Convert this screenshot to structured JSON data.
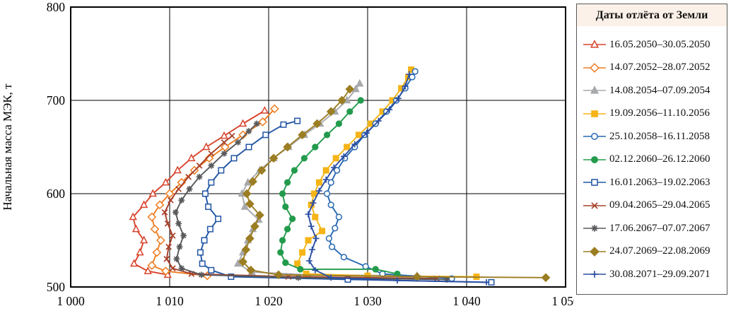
{
  "chart_data": {
    "type": "line",
    "title": "",
    "legend_title": "Даты отлёта от Земли",
    "xlabel": "",
    "ylabel": "Начальная масса МЭК, т",
    "xlim": [
      1000,
      1050
    ],
    "ylim": [
      500,
      800
    ],
    "x_ticks": [
      1000,
      1010,
      1020,
      1030,
      1040,
      1050
    ],
    "x_tick_labels": [
      "1 000",
      "1 010",
      "1 020",
      "1 030",
      "1 040",
      "1 050"
    ],
    "y_ticks": [
      500,
      600,
      700,
      800
    ],
    "grid": true,
    "legend_position": "right",
    "series": [
      {
        "name": "16.05.2050–30.05.2050",
        "marker": "triangle-open",
        "color": "#d8432c",
        "points": [
          [
            1009.8,
            513
          ],
          [
            1007.8,
            517
          ],
          [
            1006.4,
            525
          ],
          [
            1007.0,
            537
          ],
          [
            1007.4,
            550
          ],
          [
            1006.6,
            562
          ],
          [
            1006.3,
            575
          ],
          [
            1007.4,
            588
          ],
          [
            1008.3,
            600
          ],
          [
            1009.6,
            612
          ],
          [
            1010.8,
            625
          ],
          [
            1012.2,
            638
          ],
          [
            1013.7,
            650
          ],
          [
            1015.5,
            662
          ],
          [
            1017.4,
            675
          ],
          [
            1019.6,
            689
          ]
        ]
      },
      {
        "name": "14.07.2052–28.07.2052",
        "marker": "diamond-open",
        "color": "#ee7d20",
        "points": [
          [
            1013.8,
            512
          ],
          [
            1009.6,
            517
          ],
          [
            1008.2,
            523
          ],
          [
            1008.7,
            537
          ],
          [
            1009.1,
            550
          ],
          [
            1008.5,
            562
          ],
          [
            1008.2,
            575
          ],
          [
            1009.0,
            588
          ],
          [
            1010.0,
            600
          ],
          [
            1011.2,
            612
          ],
          [
            1012.5,
            625
          ],
          [
            1014.0,
            638
          ],
          [
            1015.6,
            650
          ],
          [
            1017.4,
            663
          ],
          [
            1019.4,
            677
          ],
          [
            1020.6,
            691
          ]
        ]
      },
      {
        "name": "14.08.2054–07.09.2054",
        "marker": "triangle-filled",
        "color": "#a7a9ac",
        "points": [
          [
            1035.0,
            512
          ],
          [
            1024.0,
            513
          ],
          [
            1018.3,
            516
          ],
          [
            1016.9,
            525
          ],
          [
            1017.4,
            537
          ],
          [
            1017.9,
            550
          ],
          [
            1018.4,
            562
          ],
          [
            1019.0,
            572
          ],
          [
            1017.6,
            586
          ],
          [
            1017.3,
            600
          ],
          [
            1017.9,
            612
          ],
          [
            1019.1,
            625
          ],
          [
            1020.5,
            638
          ],
          [
            1022.0,
            650
          ],
          [
            1023.6,
            663
          ],
          [
            1025.2,
            675
          ],
          [
            1026.7,
            688
          ],
          [
            1027.9,
            700
          ],
          [
            1028.8,
            712
          ],
          [
            1029.2,
            718
          ]
        ]
      },
      {
        "name": "19.09.2056–11.10.2056",
        "marker": "square-filled",
        "color": "#f5b417",
        "points": [
          [
            1041.0,
            511
          ],
          [
            1030.0,
            512
          ],
          [
            1023.8,
            514
          ],
          [
            1022.9,
            525
          ],
          [
            1023.4,
            537
          ],
          [
            1024.0,
            550
          ],
          [
            1025.4,
            560
          ],
          [
            1024.7,
            575
          ],
          [
            1024.3,
            588
          ],
          [
            1024.6,
            600
          ],
          [
            1025.1,
            612
          ],
          [
            1025.8,
            625
          ],
          [
            1026.8,
            638
          ],
          [
            1027.9,
            650
          ],
          [
            1029.1,
            663
          ],
          [
            1030.3,
            675
          ],
          [
            1031.5,
            688
          ],
          [
            1032.5,
            700
          ],
          [
            1033.4,
            713
          ],
          [
            1034.1,
            725
          ],
          [
            1034.4,
            733
          ]
        ]
      },
      {
        "name": "25.10.2058–16.11.2058",
        "marker": "circle-open",
        "color": "#2668b1",
        "points": [
          [
            1038.5,
            509
          ],
          [
            1031.5,
            514
          ],
          [
            1029.8,
            522
          ],
          [
            1027.6,
            532
          ],
          [
            1026.4,
            543
          ],
          [
            1026.1,
            552
          ],
          [
            1026.7,
            563
          ],
          [
            1027.1,
            575
          ],
          [
            1026.3,
            588
          ],
          [
            1025.9,
            600
          ],
          [
            1026.3,
            612
          ],
          [
            1026.9,
            625
          ],
          [
            1027.7,
            638
          ],
          [
            1028.7,
            650
          ],
          [
            1029.7,
            663
          ],
          [
            1030.8,
            675
          ],
          [
            1031.9,
            688
          ],
          [
            1032.9,
            700
          ],
          [
            1033.8,
            713
          ],
          [
            1034.5,
            725
          ],
          [
            1034.8,
            731
          ]
        ]
      },
      {
        "name": "02.12.2060–26.12.2060",
        "marker": "circle-filled",
        "color": "#239b4c",
        "points": [
          [
            1033.0,
            514
          ],
          [
            1030.8,
            519
          ],
          [
            1023.2,
            519
          ],
          [
            1021.7,
            526
          ],
          [
            1021.2,
            537
          ],
          [
            1021.4,
            550
          ],
          [
            1021.9,
            562
          ],
          [
            1022.4,
            573
          ],
          [
            1021.7,
            586
          ],
          [
            1021.4,
            600
          ],
          [
            1021.9,
            612
          ],
          [
            1022.6,
            625
          ],
          [
            1023.6,
            638
          ],
          [
            1024.7,
            650
          ],
          [
            1025.9,
            663
          ],
          [
            1027.1,
            675
          ],
          [
            1028.2,
            688
          ],
          [
            1029.3,
            700
          ]
        ]
      },
      {
        "name": "16.01.2063–19.02.2063",
        "marker": "square-open",
        "color": "#2155a4",
        "points": [
          [
            1042.5,
            505
          ],
          [
            1028.0,
            508
          ],
          [
            1016.2,
            511
          ],
          [
            1014.2,
            518
          ],
          [
            1013.3,
            525
          ],
          [
            1013.1,
            537
          ],
          [
            1013.5,
            550
          ],
          [
            1014.1,
            562
          ],
          [
            1014.9,
            573
          ],
          [
            1013.9,
            586
          ],
          [
            1013.6,
            600
          ],
          [
            1014.2,
            612
          ],
          [
            1015.2,
            625
          ],
          [
            1016.5,
            638
          ],
          [
            1018.0,
            650
          ],
          [
            1019.7,
            663
          ],
          [
            1021.5,
            674
          ],
          [
            1022.9,
            678
          ]
        ]
      },
      {
        "name": "09.04.2065–29.04.2065",
        "marker": "x",
        "color": "#a8402a",
        "points": [
          [
            1037.0,
            509
          ],
          [
            1022.0,
            511
          ],
          [
            1012.2,
            514
          ],
          [
            1010.3,
            520
          ],
          [
            1009.7,
            530
          ],
          [
            1009.9,
            543
          ],
          [
            1010.3,
            555
          ],
          [
            1009.8,
            568
          ],
          [
            1009.5,
            580
          ],
          [
            1010.1,
            593
          ],
          [
            1010.9,
            605
          ],
          [
            1011.9,
            618
          ],
          [
            1013.0,
            630
          ],
          [
            1014.2,
            643
          ],
          [
            1015.5,
            655
          ],
          [
            1016.3,
            662
          ]
        ]
      },
      {
        "name": "17.06.2067–07.07.2067",
        "marker": "asterisk",
        "color": "#58595b",
        "points": [
          [
            1038.0,
            508
          ],
          [
            1023.0,
            510
          ],
          [
            1013.2,
            513
          ],
          [
            1011.2,
            520
          ],
          [
            1010.7,
            530
          ],
          [
            1011.0,
            543
          ],
          [
            1011.4,
            555
          ],
          [
            1010.9,
            568
          ],
          [
            1010.6,
            580
          ],
          [
            1011.2,
            593
          ],
          [
            1012.0,
            605
          ],
          [
            1013.0,
            618
          ],
          [
            1014.2,
            630
          ],
          [
            1015.5,
            643
          ],
          [
            1016.9,
            655
          ],
          [
            1018.0,
            667
          ],
          [
            1018.8,
            675
          ]
        ]
      },
      {
        "name": "24.07.2069–22.08.2069",
        "marker": "diamond-filled",
        "color": "#9b7d22",
        "points": [
          [
            1048.0,
            510
          ],
          [
            1035.0,
            511
          ],
          [
            1021.0,
            513
          ],
          [
            1018.2,
            518
          ],
          [
            1017.4,
            527
          ],
          [
            1017.7,
            540
          ],
          [
            1018.1,
            552
          ],
          [
            1018.6,
            565
          ],
          [
            1019.1,
            577
          ],
          [
            1018.1,
            589
          ],
          [
            1017.8,
            600
          ],
          [
            1018.4,
            613
          ],
          [
            1019.3,
            625
          ],
          [
            1020.5,
            638
          ],
          [
            1021.9,
            650
          ],
          [
            1023.4,
            663
          ],
          [
            1024.9,
            675
          ],
          [
            1026.3,
            688
          ],
          [
            1027.4,
            700
          ],
          [
            1028.2,
            712
          ]
        ]
      },
      {
        "name": "30.08.2071–29.09.2071",
        "marker": "plus",
        "color": "#2b4fa2",
        "points": [
          [
            1042.0,
            505
          ],
          [
            1033.0,
            507
          ],
          [
            1026.3,
            510
          ],
          [
            1024.7,
            518
          ],
          [
            1024.1,
            528
          ],
          [
            1024.4,
            540
          ],
          [
            1024.8,
            552
          ],
          [
            1024.3,
            565
          ],
          [
            1024.0,
            578
          ],
          [
            1024.5,
            590
          ],
          [
            1025.1,
            603
          ],
          [
            1025.8,
            615
          ],
          [
            1026.6,
            628
          ],
          [
            1027.6,
            640
          ],
          [
            1028.7,
            653
          ],
          [
            1029.9,
            665
          ],
          [
            1031.1,
            678
          ],
          [
            1032.2,
            690
          ],
          [
            1033.1,
            702
          ],
          [
            1033.8,
            715
          ],
          [
            1034.2,
            728
          ]
        ]
      }
    ]
  }
}
